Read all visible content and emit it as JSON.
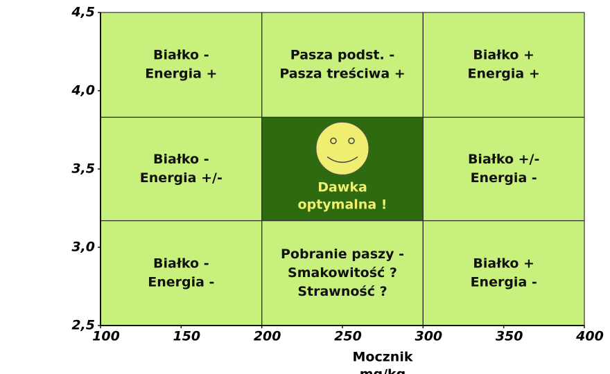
{
  "chart_data": {
    "type": "zones",
    "xlabel": "Mocznik",
    "xunit": "mg/kg",
    "xlim": [
      100,
      400
    ],
    "xticks": [
      100,
      150,
      200,
      250,
      300,
      350,
      400
    ],
    "ylim": [
      2.5,
      4.5
    ],
    "yticks": [
      {
        "value": 2.5,
        "label": "2,5"
      },
      {
        "value": 3.0,
        "label": "3,0"
      },
      {
        "value": 3.5,
        "label": "3,5"
      },
      {
        "value": 4.0,
        "label": "4,0"
      },
      {
        "value": 4.5,
        "label": "4,5"
      }
    ],
    "xbounds": [
      200,
      300
    ],
    "ybounds": [
      3.17,
      3.83
    ],
    "cell_color": "#c8f07c",
    "highlight_color": "#2d6a10",
    "highlight_text_color": "#f2ee6e",
    "cells": [
      [
        {
          "lines": [
            "Białko -",
            "Energia +"
          ]
        },
        {
          "lines": [
            "Pasza podst. -",
            "Pasza treściwa +"
          ]
        },
        {
          "lines": [
            "Białko +",
            "Energia +"
          ]
        }
      ],
      [
        {
          "lines": [
            "Białko -",
            "Energia +/-"
          ]
        },
        {
          "lines": [
            "Dawka",
            "optymalna  !"
          ],
          "highlight": true
        },
        {
          "lines": [
            "Białko +/-",
            "Energia -"
          ]
        }
      ],
      [
        {
          "lines": [
            "Białko -",
            "Energia -"
          ]
        },
        {
          "lines": [
            "Pobranie paszy -",
            "Smakowitość ?",
            "Strawność ?"
          ]
        },
        {
          "lines": [
            "Białko +",
            "Energia -"
          ]
        }
      ]
    ]
  }
}
